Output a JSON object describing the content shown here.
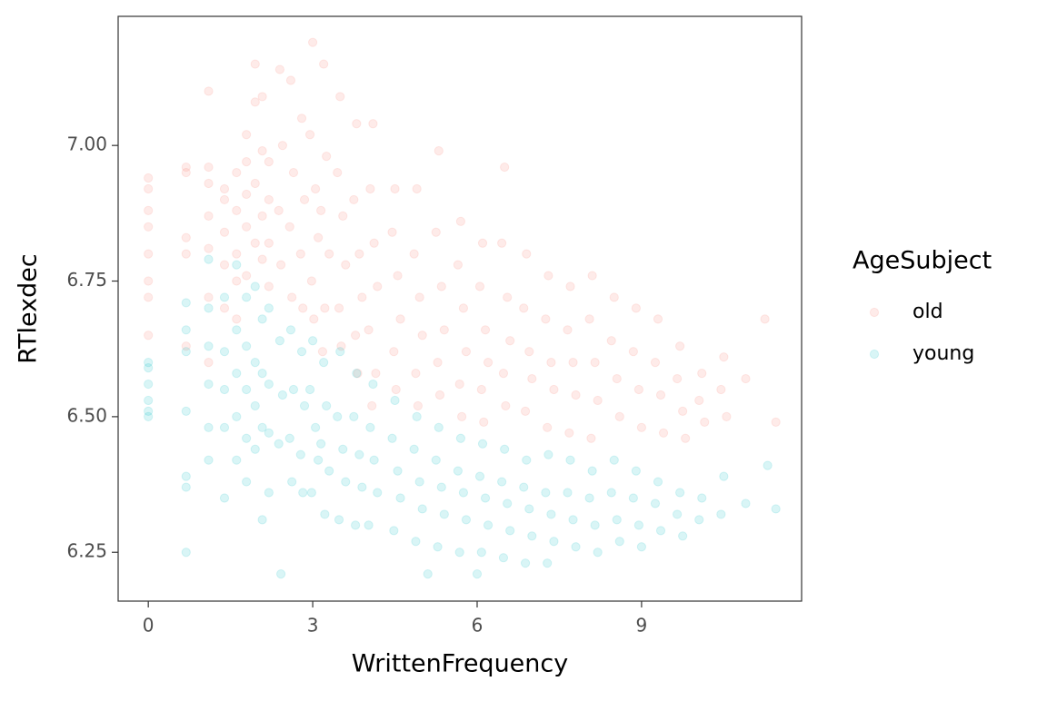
{
  "chart_data": {
    "type": "scatter",
    "x_label": "WrittenFrequency",
    "y_label": "RTlexdec",
    "xlim": [
      -0.55,
      11.92
    ],
    "ylim": [
      6.16,
      7.238
    ],
    "xticks": [
      0,
      3,
      6,
      9
    ],
    "yticks": [
      {
        "value": 6.25,
        "label": "6.25"
      },
      {
        "value": 6.5,
        "label": "6.50"
      },
      {
        "value": 6.75,
        "label": "6.75"
      },
      {
        "value": 7,
        "label": "7.00"
      }
    ],
    "legend_title": "AgeSubject",
    "legend_position": "right",
    "opacity": 0.15,
    "series": [
      {
        "name": "old",
        "color": "#F8766D",
        "x": [
          0,
          0,
          0,
          0,
          0,
          0,
          0,
          0,
          0.69,
          0.69,
          0.69,
          0.69,
          0.69,
          1.1,
          1.1,
          1.1,
          1.1,
          1.1,
          1.1,
          1.1,
          1.39,
          1.39,
          1.39,
          1.39,
          1.39,
          1.61,
          1.61,
          1.61,
          1.61,
          1.61,
          1.79,
          1.79,
          1.79,
          1.79,
          1.79,
          1.95,
          1.95,
          1.95,
          1.95,
          2.08,
          2.08,
          2.08,
          2.08,
          2.2,
          2.2,
          2.2,
          2.2,
          2.4,
          2.45,
          2.38,
          2.42,
          2.6,
          2.65,
          2.58,
          2.62,
          2.8,
          2.85,
          2.78,
          2.82,
          3.0,
          2.95,
          3.05,
          3.1,
          2.98,
          3.02,
          3.2,
          3.25,
          3.15,
          3.3,
          3.22,
          3.18,
          3.5,
          3.45,
          3.55,
          3.6,
          3.48,
          3.52,
          3.8,
          3.75,
          3.85,
          3.9,
          3.78,
          3.82,
          4.1,
          4.05,
          4.12,
          4.18,
          4.02,
          4.15,
          4.08,
          4.5,
          4.45,
          4.55,
          4.6,
          4.48,
          4.52,
          4.9,
          4.85,
          4.95,
          5.0,
          4.88,
          4.92,
          5.3,
          5.25,
          5.35,
          5.4,
          5.28,
          5.32,
          5.7,
          5.65,
          5.75,
          5.8,
          5.68,
          5.72,
          6.1,
          6.05,
          6.15,
          6.2,
          6.08,
          6.12,
          6.5,
          6.45,
          6.55,
          6.6,
          6.48,
          6.52,
          6.9,
          6.85,
          6.95,
          7.0,
          6.88,
          7.3,
          7.25,
          7.35,
          7.4,
          7.28,
          7.7,
          7.65,
          7.75,
          7.8,
          7.68,
          8.1,
          8.05,
          8.15,
          8.2,
          8.08,
          8.5,
          8.45,
          8.55,
          8.6,
          8.9,
          8.85,
          8.95,
          9.0,
          9.3,
          9.25,
          9.35,
          9.4,
          9.7,
          9.65,
          9.75,
          9.8,
          10.1,
          10.05,
          10.15,
          10.5,
          10.45,
          10.55,
          10.9,
          11.25,
          11.45
        ],
        "values": [
          6.94,
          6.92,
          6.88,
          6.85,
          6.8,
          6.75,
          6.72,
          6.65,
          6.96,
          6.95,
          6.83,
          6.8,
          6.63,
          7.1,
          6.96,
          6.93,
          6.87,
          6.81,
          6.72,
          6.6,
          6.92,
          6.9,
          6.84,
          6.78,
          6.7,
          6.95,
          6.88,
          6.8,
          6.75,
          6.68,
          7.02,
          6.97,
          6.91,
          6.85,
          6.76,
          7.15,
          7.08,
          6.93,
          6.82,
          7.09,
          6.99,
          6.87,
          6.79,
          6.97,
          6.9,
          6.82,
          6.74,
          7.14,
          7.0,
          6.88,
          6.78,
          7.12,
          6.95,
          6.85,
          6.72,
          7.05,
          6.9,
          6.8,
          6.7,
          7.19,
          7.02,
          6.92,
          6.83,
          6.75,
          6.68,
          7.15,
          6.98,
          6.88,
          6.8,
          6.7,
          6.62,
          7.09,
          6.95,
          6.87,
          6.78,
          6.7,
          6.63,
          7.04,
          6.9,
          6.8,
          6.72,
          6.65,
          6.58,
          7.04,
          6.92,
          6.82,
          6.74,
          6.66,
          6.58,
          6.52,
          6.92,
          6.84,
          6.76,
          6.68,
          6.62,
          6.55,
          6.92,
          6.8,
          6.72,
          6.65,
          6.58,
          6.52,
          6.99,
          6.84,
          6.74,
          6.66,
          6.6,
          6.54,
          6.86,
          6.78,
          6.7,
          6.62,
          6.56,
          6.5,
          6.82,
          6.74,
          6.66,
          6.6,
          6.55,
          6.49,
          6.96,
          6.82,
          6.72,
          6.64,
          6.58,
          6.52,
          6.8,
          6.7,
          6.62,
          6.57,
          6.51,
          6.76,
          6.68,
          6.6,
          6.55,
          6.48,
          6.74,
          6.66,
          6.6,
          6.54,
          6.47,
          6.76,
          6.68,
          6.6,
          6.53,
          6.46,
          6.72,
          6.64,
          6.57,
          6.5,
          6.7,
          6.62,
          6.55,
          6.48,
          6.68,
          6.6,
          6.54,
          6.47,
          6.63,
          6.57,
          6.51,
          6.46,
          6.58,
          6.53,
          6.49,
          6.61,
          6.55,
          6.5,
          6.57,
          6.68,
          6.49
        ]
      },
      {
        "name": "young",
        "color": "#00BFC4",
        "x": [
          0,
          0,
          0,
          0,
          0,
          0,
          0.69,
          0.69,
          0.69,
          0.69,
          0.69,
          0.69,
          0.69,
          1.1,
          1.1,
          1.1,
          1.1,
          1.1,
          1.1,
          1.39,
          1.39,
          1.39,
          1.39,
          1.39,
          1.61,
          1.61,
          1.61,
          1.61,
          1.61,
          1.79,
          1.79,
          1.79,
          1.79,
          1.79,
          1.95,
          1.95,
          1.95,
          1.95,
          2.08,
          2.08,
          2.08,
          2.08,
          2.2,
          2.2,
          2.2,
          2.2,
          2.4,
          2.45,
          2.38,
          2.42,
          2.6,
          2.65,
          2.58,
          2.62,
          2.8,
          2.85,
          2.78,
          2.82,
          3.0,
          2.95,
          3.05,
          3.1,
          2.98,
          3.2,
          3.25,
          3.15,
          3.3,
          3.22,
          3.5,
          3.45,
          3.55,
          3.6,
          3.48,
          3.8,
          3.75,
          3.85,
          3.9,
          3.78,
          4.1,
          4.05,
          4.12,
          4.18,
          4.02,
          4.5,
          4.45,
          4.55,
          4.6,
          4.48,
          4.9,
          4.85,
          4.95,
          5.0,
          4.88,
          5.1,
          5.3,
          5.25,
          5.35,
          5.4,
          5.28,
          5.7,
          5.65,
          5.75,
          5.8,
          5.68,
          6.0,
          6.1,
          6.05,
          6.15,
          6.2,
          6.08,
          6.5,
          6.45,
          6.55,
          6.6,
          6.48,
          6.9,
          6.85,
          6.95,
          7.0,
          6.88,
          7.3,
          7.25,
          7.35,
          7.4,
          7.28,
          7.7,
          7.65,
          7.75,
          7.8,
          8.1,
          8.05,
          8.15,
          8.2,
          8.5,
          8.45,
          8.55,
          8.6,
          8.9,
          8.85,
          8.95,
          9.0,
          9.3,
          9.25,
          9.35,
          9.7,
          9.65,
          9.75,
          10.1,
          10.05,
          10.5,
          10.45,
          10.9,
          11.3,
          11.45
        ],
        "values": [
          6.6,
          6.59,
          6.56,
          6.53,
          6.51,
          6.5,
          6.71,
          6.66,
          6.62,
          6.51,
          6.39,
          6.37,
          6.25,
          6.79,
          6.7,
          6.63,
          6.56,
          6.48,
          6.42,
          6.72,
          6.62,
          6.55,
          6.48,
          6.35,
          6.78,
          6.66,
          6.58,
          6.5,
          6.42,
          6.72,
          6.63,
          6.55,
          6.46,
          6.38,
          6.74,
          6.6,
          6.52,
          6.44,
          6.68,
          6.58,
          6.48,
          6.31,
          6.7,
          6.56,
          6.47,
          6.36,
          6.64,
          6.54,
          6.45,
          6.21,
          6.66,
          6.55,
          6.46,
          6.38,
          6.62,
          6.52,
          6.43,
          6.36,
          6.64,
          6.55,
          6.48,
          6.42,
          6.36,
          6.6,
          6.52,
          6.45,
          6.4,
          6.32,
          6.62,
          6.5,
          6.44,
          6.38,
          6.31,
          6.58,
          6.5,
          6.43,
          6.37,
          6.3,
          6.56,
          6.48,
          6.42,
          6.36,
          6.3,
          6.53,
          6.46,
          6.4,
          6.35,
          6.29,
          6.5,
          6.44,
          6.38,
          6.33,
          6.27,
          6.21,
          6.48,
          6.42,
          6.37,
          6.32,
          6.26,
          6.46,
          6.4,
          6.36,
          6.31,
          6.25,
          6.21,
          6.45,
          6.39,
          6.35,
          6.3,
          6.25,
          6.44,
          6.38,
          6.34,
          6.29,
          6.24,
          6.42,
          6.37,
          6.33,
          6.28,
          6.23,
          6.43,
          6.36,
          6.32,
          6.27,
          6.23,
          6.42,
          6.36,
          6.31,
          6.26,
          6.4,
          6.35,
          6.3,
          6.25,
          6.42,
          6.36,
          6.31,
          6.27,
          6.4,
          6.35,
          6.3,
          6.26,
          6.38,
          6.34,
          6.29,
          6.36,
          6.32,
          6.28,
          6.35,
          6.31,
          6.39,
          6.32,
          6.34,
          6.41,
          6.33
        ]
      }
    ]
  }
}
